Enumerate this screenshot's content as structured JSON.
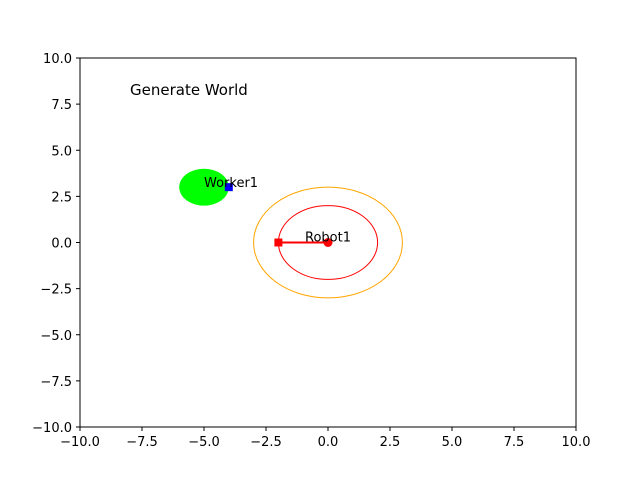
{
  "chart_data": {
    "type": "scatter",
    "title": "",
    "xlabel": "",
    "ylabel": "",
    "xlim": [
      -10,
      10
    ],
    "ylim": [
      -10,
      10
    ],
    "grid": false,
    "x_ticks": [
      "−10.0",
      "−7.5",
      "−5.0",
      "−2.5",
      "0.0",
      "2.5",
      "5.0",
      "7.5",
      "10.0"
    ],
    "y_ticks": [
      "−10.0",
      "−7.5",
      "−5.0",
      "−2.5",
      "0.0",
      "2.5",
      "5.0",
      "7.5",
      "10.0"
    ],
    "annotation_text": "Generate World",
    "worker": {
      "label": "Worker1",
      "center": [
        -5,
        3
      ],
      "radius": 1.0,
      "fill_color": "#00ff00",
      "marker": [
        -4,
        3
      ],
      "marker_color": "#0000ff"
    },
    "robot": {
      "label": "Robot1",
      "center": [
        0,
        0
      ],
      "inner_radius": 2.0,
      "outer_radius": 3.0,
      "inner_color": "#ff0000",
      "outer_color": "#ffa500",
      "arm_end": [
        -2,
        0
      ],
      "arm_color": "#ff0000"
    }
  }
}
